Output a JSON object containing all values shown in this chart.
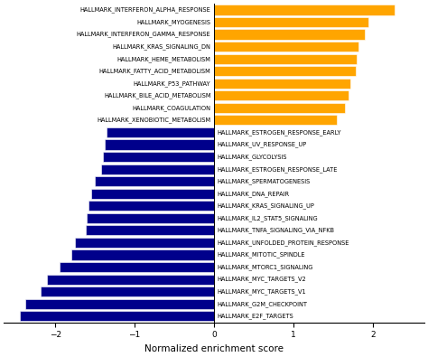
{
  "categories": [
    "HALLMARK_INTERFERON_ALPHA_RESPONSE",
    "HALLMARK_MYOGENESIS",
    "HALLMARK_INTERFERON_GAMMA_RESPONSE",
    "HALLMARK_KRAS_SIGNALING_DN",
    "HALLMARK_HEME_METABOLISM",
    "HALLMARK_FATTY_ACID_METABOLISM",
    "HALLMARK_P53_PATHWAY",
    "HALLMARK_BILE_ACID_METABOLISM",
    "HALLMARK_COAGULATION",
    "HALLMARK_XENOBIOTIC_METABOLISM",
    "HALLMARK_ESTROGEN_RESPONSE_EARLY",
    "HALLMARK_UV_RESPONSE_UP",
    "HALLMARK_GLYCOLYSIS",
    "HALLMARK_ESTROGEN_RESPONSE_LATE",
    "HALLMARK_SPERMATOGENESIS",
    "HALLMARK_DNA_REPAIR",
    "HALLMARK_KRAS_SIGNALING_UP",
    "HALLMARK_IL2_STAT5_SIGNALING",
    "HALLMARK_TNFA_SIGNALING_VIA_NFKB",
    "HALLMARK_UNFOLDED_PROTEIN_RESPONSE",
    "HALLMARK_MITOTIC_SPINDLE",
    "HALLMARK_MTORC1_SIGNALING",
    "HALLMARK_MYC_TARGETS_V2",
    "HALLMARK_MYC_TARGETS_V1",
    "HALLMARK_G2M_CHECKPOINT",
    "HALLMARK_E2F_TARGETS"
  ],
  "values": [
    2.28,
    1.95,
    1.9,
    1.82,
    1.8,
    1.79,
    1.72,
    1.7,
    1.65,
    1.55,
    -1.35,
    -1.38,
    -1.4,
    -1.42,
    -1.5,
    -1.55,
    -1.58,
    -1.6,
    -1.62,
    -1.75,
    -1.8,
    -1.95,
    -2.1,
    -2.18,
    -2.38,
    -2.45
  ],
  "positive_color": "#FFA500",
  "negative_color": "#00008B",
  "xlabel": "Normalized enrichment score",
  "xlim": [
    -2.65,
    2.65
  ],
  "label_fontsize": 4.8,
  "xlabel_fontsize": 7.5,
  "tick_fontsize": 6.5,
  "background_color": "#ffffff",
  "bar_height": 0.82
}
